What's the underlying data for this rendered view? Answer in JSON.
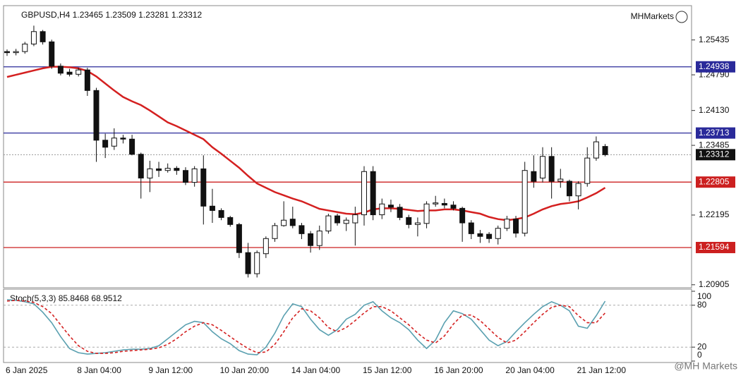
{
  "chart_data": [
    {
      "type": "candlestick",
      "title": "GBPUSD,H4 1.23465 1.23509 1.23281 1.23312",
      "categories": [
        "6 Jan 2025",
        null,
        null,
        null,
        null,
        null,
        null,
        null,
        "8 Jan 04:00",
        null,
        null,
        null,
        null,
        null,
        null,
        null,
        "9 Jan 12:00",
        null,
        null,
        null,
        null,
        null,
        null,
        null,
        "10 Jan 20:00",
        null,
        null,
        null,
        null,
        null,
        null,
        null,
        "14 Jan 04:00",
        null,
        null,
        null,
        null,
        null,
        null,
        null,
        "15 Jan 12:00",
        null,
        null,
        null,
        null,
        null,
        null,
        null,
        "16 Jan 20:00",
        null,
        null,
        null,
        null,
        null,
        null,
        null,
        "20 Jan 04:00",
        null,
        null,
        null,
        null,
        null,
        null,
        null,
        "21 Jan 12:00",
        null,
        null,
        null
      ],
      "open": [
        1.2522,
        1.252,
        1.2522,
        1.2536,
        1.2559,
        1.254,
        1.2495,
        1.2484,
        1.248,
        1.2488,
        1.245,
        1.2358,
        1.2347,
        1.2362,
        1.236,
        1.2332,
        1.2288,
        1.2305,
        1.2302,
        1.2306,
        1.2302,
        1.228,
        1.2305,
        1.2236,
        1.2228,
        1.2215,
        1.2202,
        1.215,
        1.2111,
        1.2148,
        1.2176,
        1.22,
        1.2212,
        1.22,
        1.2185,
        1.2163,
        1.219,
        1.2218,
        1.2204,
        1.2205,
        1.222,
        1.23,
        1.222,
        1.2238,
        1.2234,
        1.2215,
        1.2202,
        1.2204,
        1.224,
        1.2241,
        1.2238,
        1.2232,
        1.2205,
        1.2185,
        1.2184,
        1.2176,
        1.2195,
        1.2212,
        1.2186,
        1.23,
        1.2288,
        1.2328,
        1.2282,
        1.2282,
        1.2255,
        1.2278,
        1.2325,
        1.23465
      ],
      "high": [
        1.2526,
        1.2527,
        1.254,
        1.257,
        1.2562,
        1.2544,
        1.25,
        1.249,
        1.2492,
        1.2492,
        1.2455,
        1.237,
        1.238,
        1.2368,
        1.2368,
        1.2335,
        1.232,
        1.2318,
        1.2315,
        1.231,
        1.2308,
        1.231,
        1.233,
        1.2268,
        1.2232,
        1.2218,
        1.2205,
        1.2168,
        1.2154,
        1.218,
        1.2205,
        1.2245,
        1.2235,
        1.2205,
        1.219,
        1.22,
        1.2222,
        1.2222,
        1.2215,
        1.2235,
        1.231,
        1.231,
        1.225,
        1.2248,
        1.224,
        1.222,
        1.2215,
        1.2245,
        1.2255,
        1.225,
        1.2245,
        1.2235,
        1.221,
        1.2192,
        1.2188,
        1.22,
        1.2218,
        1.2218,
        1.2318,
        1.233,
        1.2345,
        1.2345,
        1.2305,
        1.2285,
        1.2282,
        1.2345,
        1.2365,
        1.23509
      ],
      "low": [
        1.2514,
        1.2515,
        1.2518,
        1.2532,
        1.2535,
        1.249,
        1.2478,
        1.2476,
        1.2476,
        1.244,
        1.2318,
        1.2325,
        1.234,
        1.2352,
        1.233,
        1.225,
        1.2262,
        1.229,
        1.2298,
        1.2294,
        1.2275,
        1.2272,
        1.2202,
        1.2205,
        1.221,
        1.2198,
        1.214,
        1.2104,
        1.2104,
        1.214,
        1.217,
        1.2198,
        1.2195,
        1.2175,
        1.215,
        1.2155,
        1.2185,
        1.22,
        1.219,
        1.2163,
        1.22,
        1.221,
        1.2212,
        1.2225,
        1.221,
        1.2195,
        1.218,
        1.2195,
        1.2235,
        1.2232,
        1.2228,
        1.217,
        1.2175,
        1.2168,
        1.2168,
        1.2165,
        1.219,
        1.2178,
        1.218,
        1.227,
        1.228,
        1.225,
        1.227,
        1.2245,
        1.223,
        1.2272,
        1.232,
        1.23281
      ],
      "close": [
        1.252,
        1.2522,
        1.2536,
        1.2559,
        1.254,
        1.2495,
        1.2482,
        1.248,
        1.2488,
        1.245,
        1.2358,
        1.2345,
        1.2362,
        1.236,
        1.2332,
        1.2288,
        1.2305,
        1.2302,
        1.2306,
        1.2302,
        1.228,
        1.2305,
        1.2236,
        1.2228,
        1.2215,
        1.2202,
        1.215,
        1.2111,
        1.215,
        1.2176,
        1.22,
        1.221,
        1.22,
        1.2185,
        1.2163,
        1.219,
        1.2218,
        1.2205,
        1.221,
        1.222,
        1.23,
        1.222,
        1.224,
        1.2234,
        1.2215,
        1.2202,
        1.2205,
        1.224,
        1.2242,
        1.2238,
        1.2232,
        1.2205,
        1.2185,
        1.218,
        1.2176,
        1.2195,
        1.2212,
        1.2186,
        1.2302,
        1.2282,
        1.2328,
        1.2282,
        1.2286,
        1.2255,
        1.2278,
        1.2325,
        1.2355,
        1.23312
      ],
      "ma": {
        "color": "#d42020",
        "values": [
          1.2475,
          1.2479,
          1.2483,
          1.2487,
          1.2491,
          1.2494,
          1.2494,
          1.2493,
          1.2491,
          1.2486,
          1.2476,
          1.2463,
          1.245,
          1.2438,
          1.243,
          1.2423,
          1.2413,
          1.2402,
          1.2391,
          1.2384,
          1.2376,
          1.2368,
          1.236,
          1.2345,
          1.2333,
          1.232,
          1.2307,
          1.2292,
          1.2278,
          1.227,
          1.2262,
          1.2256,
          1.225,
          1.2245,
          1.2238,
          1.2231,
          1.2228,
          1.2225,
          1.2222,
          1.2221,
          1.2224,
          1.223,
          1.2232,
          1.2232,
          1.2231,
          1.2229,
          1.2227,
          1.2228,
          1.2228,
          1.223,
          1.223,
          1.2228,
          1.2225,
          1.2222,
          1.2216,
          1.2212,
          1.221,
          1.2212,
          1.2215,
          1.2222,
          1.223,
          1.2236,
          1.224,
          1.2242,
          1.2245,
          1.2252,
          1.226,
          1.227
        ]
      },
      "levels": [
        {
          "value": 1.24938,
          "color": "#2a2a9a"
        },
        {
          "value": 1.23713,
          "color": "#2a2a9a"
        },
        {
          "value": 1.22805,
          "color": "#cc2020"
        },
        {
          "value": 1.21594,
          "color": "#cc2020"
        }
      ],
      "ylim": [
        1.2085,
        1.2607
      ],
      "yticks": [
        1.20905,
        1.22195,
        1.23485,
        {
          "value": 1.2413,
          "label": "1.24130"
        },
        {
          "value": 1.2479,
          "label": "1.24790"
        },
        1.25435
      ],
      "watermark": "MHMarkets"
    },
    {
      "type": "line",
      "title": "Stoch(5,3,3) 85.8468 68.9512",
      "series": [
        {
          "color": "#5aa0b0",
          "dash": false,
          "values": [
            88,
            87,
            85,
            82,
            70,
            55,
            35,
            18,
            12,
            10,
            11,
            12,
            14,
            16,
            17,
            17,
            18,
            22,
            32,
            42,
            52,
            57,
            55,
            42,
            32,
            25,
            15,
            10,
            9,
            20,
            40,
            65,
            82,
            78,
            60,
            45,
            37,
            45,
            60,
            67,
            80,
            85,
            72,
            62,
            55,
            45,
            30,
            18,
            30,
            55,
            72,
            68,
            60,
            45,
            30,
            22,
            28,
            42,
            55,
            67,
            78,
            85,
            80,
            72,
            50,
            47,
            65,
            85.8468
          ]
        },
        {
          "color": "#d42020",
          "dash": true,
          "values": [
            86,
            87,
            86,
            84,
            78,
            68,
            52,
            36,
            22,
            14,
            11,
            11,
            12,
            14,
            15,
            16,
            17,
            19,
            24,
            32,
            42,
            50,
            55,
            52,
            44,
            35,
            26,
            18,
            12,
            13,
            24,
            42,
            62,
            75,
            72,
            62,
            48,
            42,
            48,
            58,
            69,
            78,
            78,
            72,
            62,
            52,
            40,
            30,
            26,
            36,
            53,
            66,
            66,
            58,
            46,
            34,
            26,
            30,
            42,
            55,
            67,
            77,
            80,
            78,
            65,
            55,
            55,
            68.9512
          ]
        }
      ],
      "levels": [
        80,
        20
      ],
      "ylim": [
        0,
        100
      ],
      "yticks": [
        100,
        80,
        20,
        0
      ],
      "watermark": "@MH Markets"
    }
  ]
}
